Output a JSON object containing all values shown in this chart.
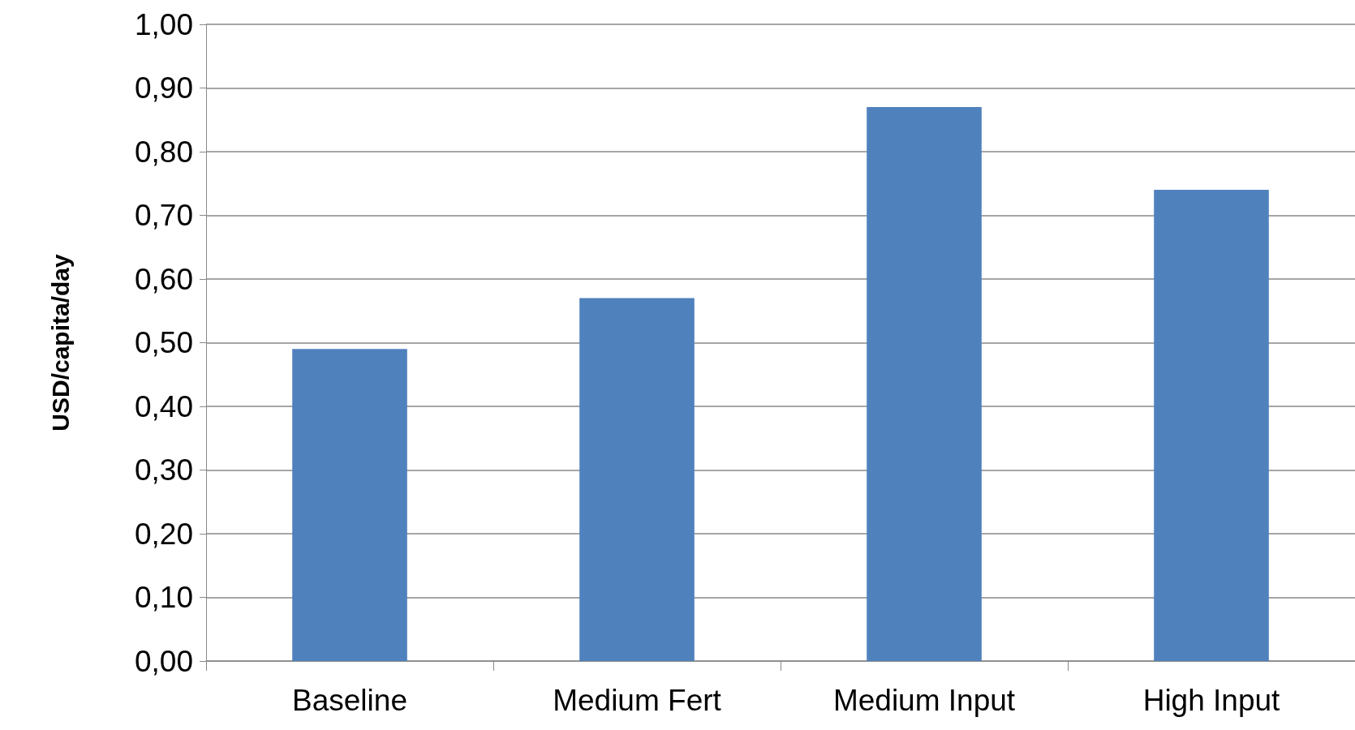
{
  "chart_data": {
    "type": "bar",
    "ylabel": "USD/capita/day",
    "categories": [
      "Baseline",
      "Medium Fert",
      "Medium Input",
      "High Input"
    ],
    "values": [
      0.49,
      0.57,
      0.87,
      0.74
    ],
    "color": "#4f81bd",
    "ylim": [
      0,
      1
    ],
    "yticks": [
      {
        "value": 0,
        "label": "0,00"
      },
      {
        "value": 0.1,
        "label": "0,10"
      },
      {
        "value": 0.2,
        "label": "0,20"
      },
      {
        "value": 0.3,
        "label": "0,30"
      },
      {
        "value": 0.4,
        "label": "0,40"
      },
      {
        "value": 0.5,
        "label": "0,50"
      },
      {
        "value": 0.6,
        "label": "0,60"
      },
      {
        "value": 0.7,
        "label": "0,70"
      },
      {
        "value": 0.8,
        "label": "0,80"
      },
      {
        "value": 0.9,
        "label": "0,90"
      },
      {
        "value": 1,
        "label": "1,00"
      }
    ],
    "grid": "y"
  }
}
